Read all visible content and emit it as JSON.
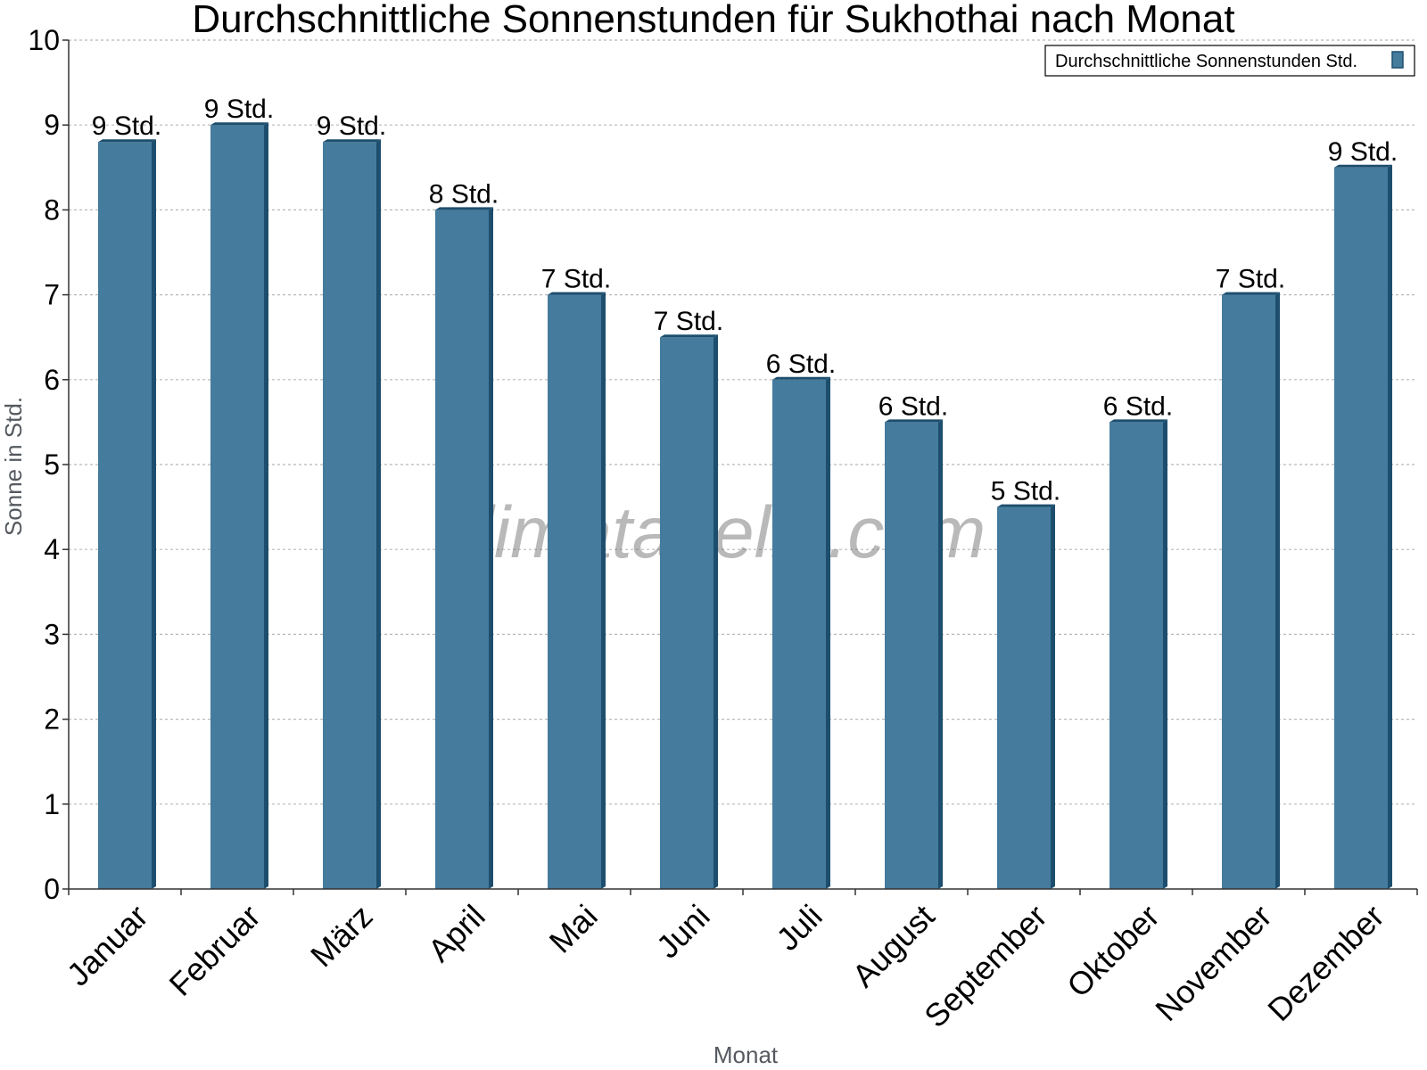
{
  "chart_data": {
    "type": "bar",
    "title": "Durchschnittliche Sonnenstunden für Sukhothai nach Monat",
    "xlabel": "Monat",
    "ylabel": "Sonne in Std.",
    "ylim": [
      0,
      10
    ],
    "yticks": [
      0,
      1,
      2,
      3,
      4,
      5,
      6,
      7,
      8,
      9,
      10
    ],
    "grid": true,
    "legend_position": "top-right",
    "categories": [
      "Januar",
      "Februar",
      "März",
      "April",
      "Mai",
      "Juni",
      "Juli",
      "August",
      "September",
      "Oktober",
      "November",
      "Dezember"
    ],
    "series": [
      {
        "name": "Durchschnittliche Sonnenstunden Std.",
        "color": "#457b9d",
        "values": [
          8.8,
          9.0,
          8.8,
          8.0,
          7.0,
          6.5,
          6.0,
          5.5,
          4.5,
          5.5,
          7.0,
          8.5
        ],
        "labels": [
          "9 Std.",
          "9 Std.",
          "9 Std.",
          "8 Std.",
          "7 Std.",
          "7 Std.",
          "6 Std.",
          "6 Std.",
          "5 Std.",
          "6 Std.",
          "7 Std.",
          "9 Std."
        ]
      }
    ]
  },
  "watermark": "klimatabelle.com",
  "colors": {
    "bar_face": "#457b9d",
    "bar_side": "#1d4e6e",
    "grid": "#b8b8b8",
    "axis": "#333333"
  }
}
